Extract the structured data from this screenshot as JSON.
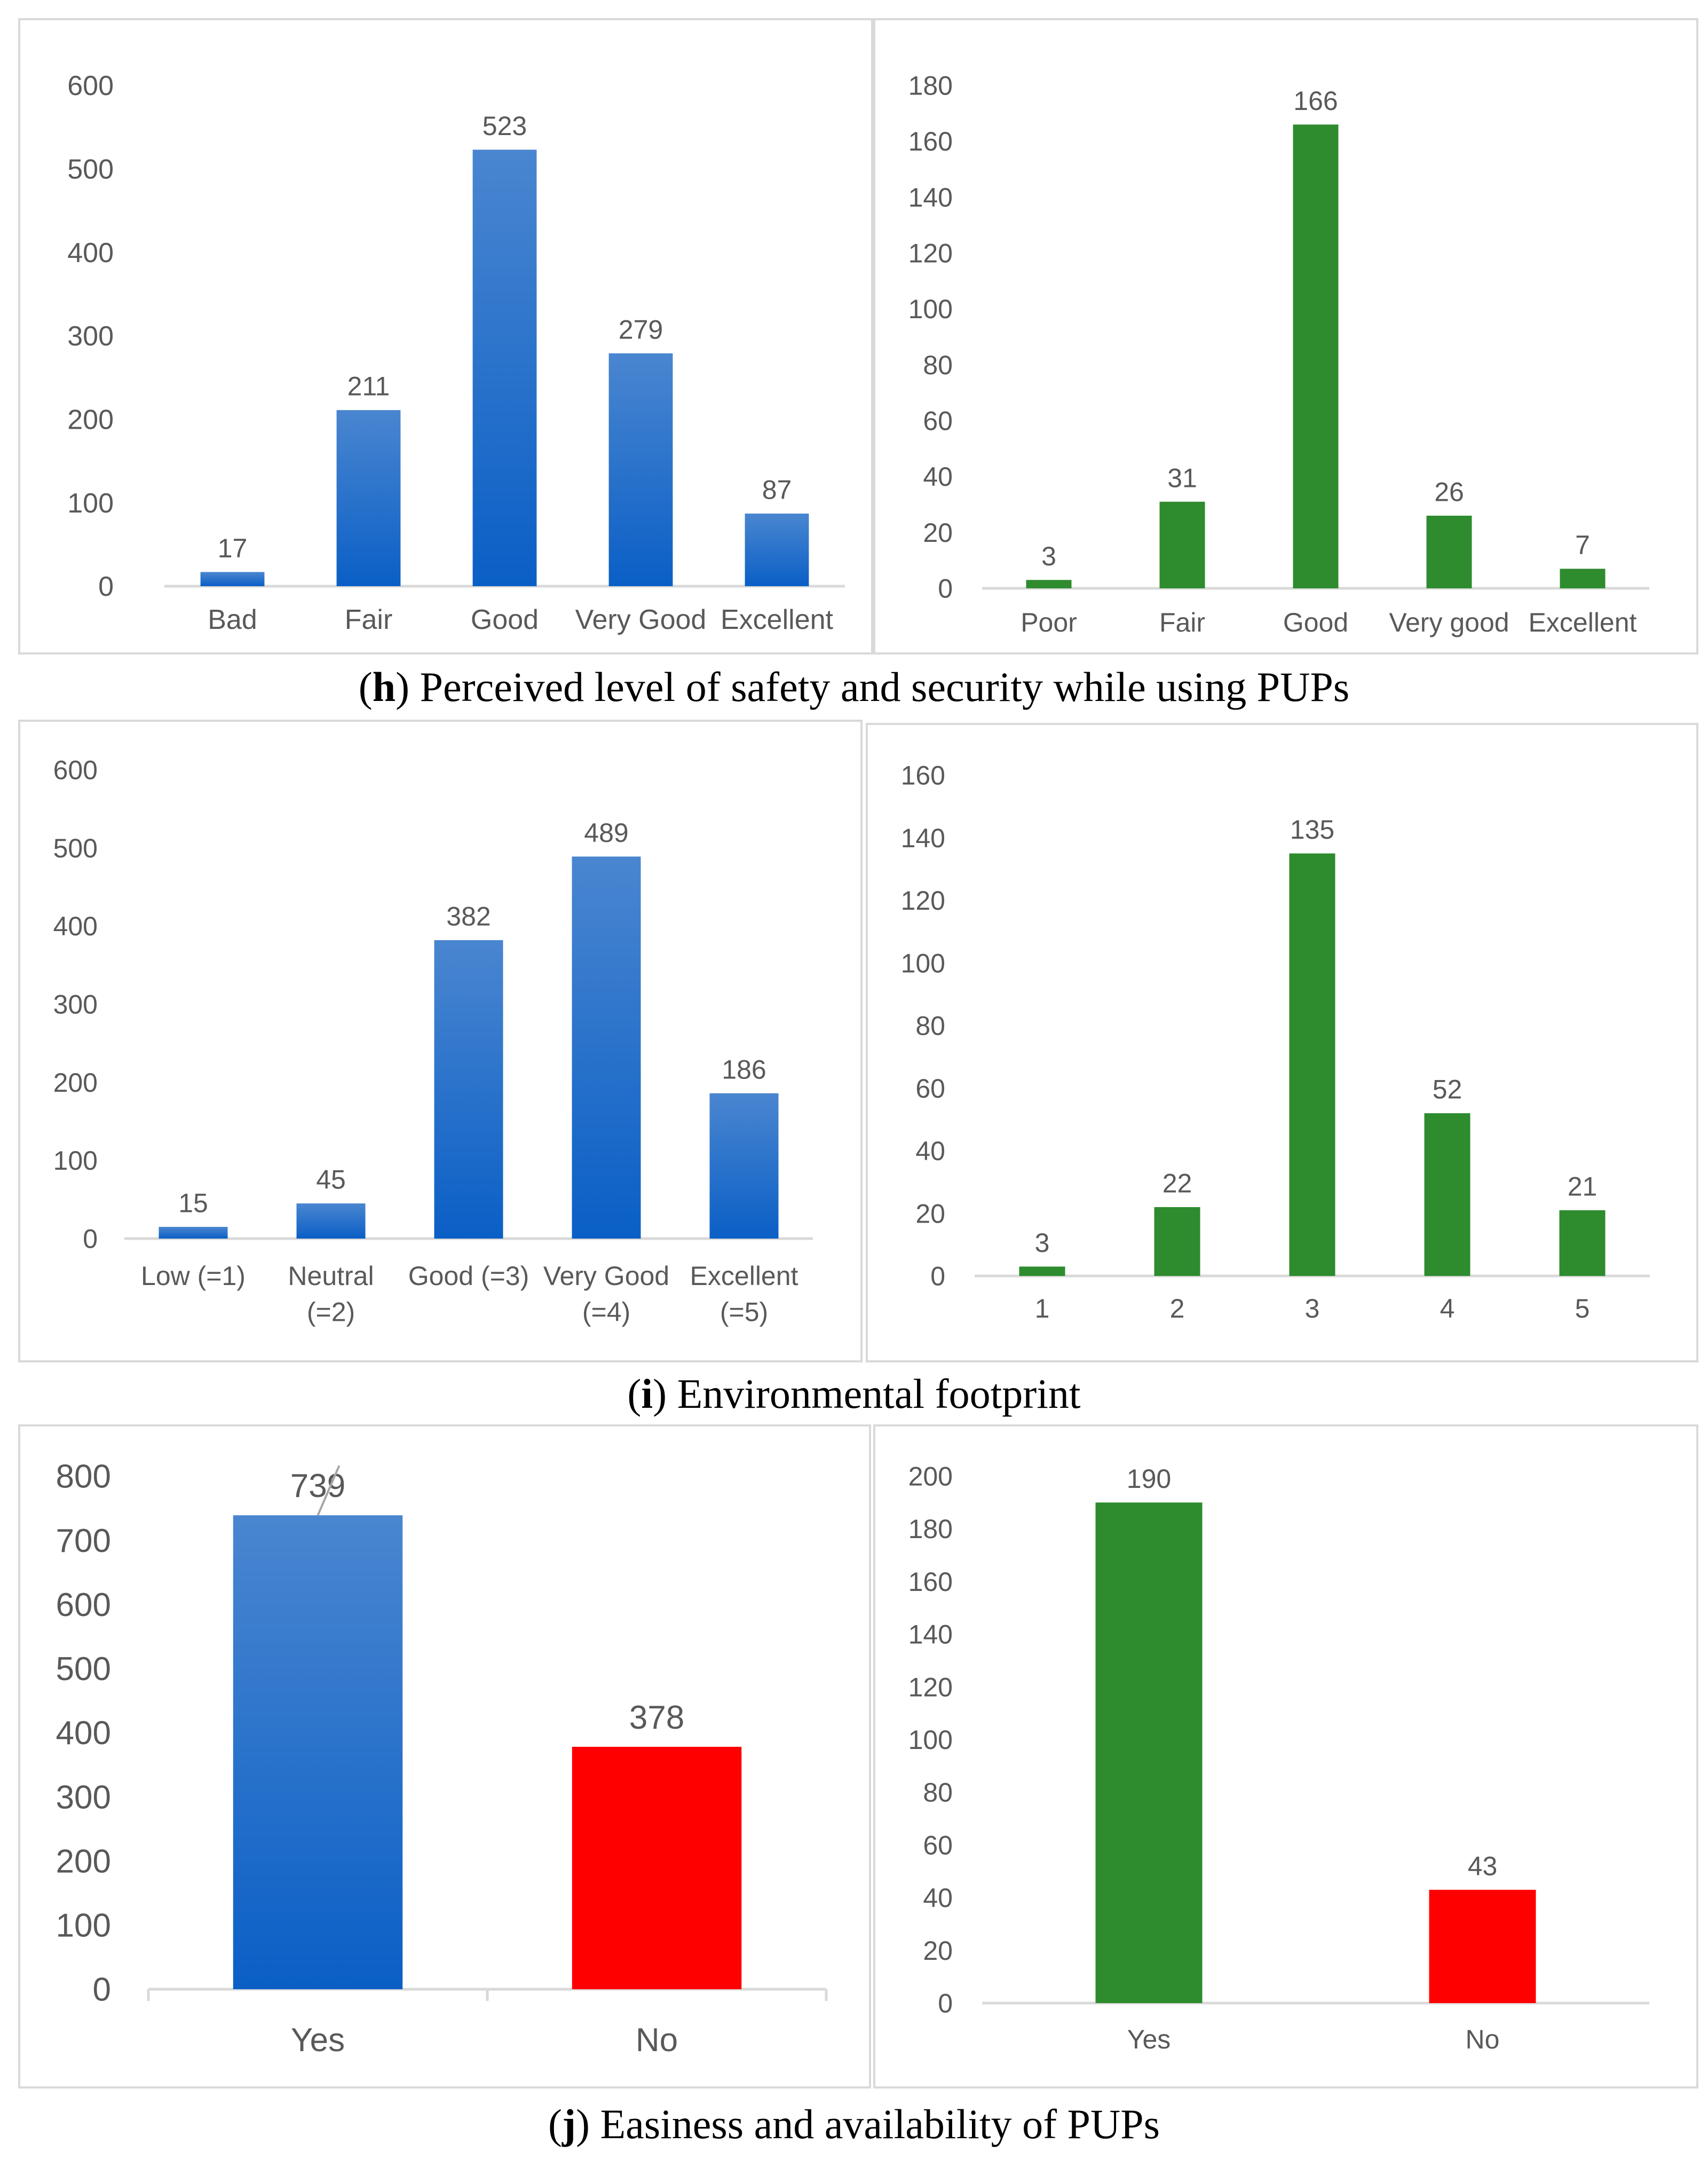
{
  "captions": [
    {
      "letter": "h",
      "text": " Perceived level of safety and security while using PUPs"
    },
    {
      "letter": "i",
      "text": " Environmental footprint"
    },
    {
      "letter": "j",
      "text": " Easiness and availability of PUPs"
    }
  ],
  "colors": {
    "blue_top": "#4a86d0",
    "blue_bottom": "#0a5fc6",
    "green": "#2e8b2e",
    "red": "#ff0000",
    "axis": "#d9d9d9",
    "text": "#595959",
    "panel_border": "#d9d9d9"
  },
  "chart_data": [
    {
      "id": "h-left",
      "type": "bar",
      "categories": [
        "Bad",
        "Fair",
        "Good",
        "Very Good",
        "Excellent"
      ],
      "values": [
        17,
        211,
        523,
        279,
        87
      ],
      "ylim": [
        0,
        600
      ],
      "yticks": [
        0,
        100,
        200,
        300,
        400,
        500,
        600
      ],
      "bar_colors": [
        "blue",
        "blue",
        "blue",
        "blue",
        "blue"
      ],
      "title": "",
      "xlabel": "",
      "ylabel": ""
    },
    {
      "id": "h-right",
      "type": "bar",
      "categories": [
        "Poor",
        "Fair",
        "Good",
        "Very good",
        "Excellent"
      ],
      "values": [
        3,
        31,
        166,
        26,
        7
      ],
      "ylim": [
        0,
        180
      ],
      "yticks": [
        0,
        20,
        40,
        60,
        80,
        100,
        120,
        140,
        160,
        180
      ],
      "bar_colors": [
        "green",
        "green",
        "green",
        "green",
        "green"
      ],
      "title": "",
      "xlabel": "",
      "ylabel": ""
    },
    {
      "id": "i-left",
      "type": "bar",
      "categories": [
        "Low (=1)",
        "Neutral (=2)",
        "Good (=3)",
        "Very Good (=4)",
        "Excellent (=5)"
      ],
      "values": [
        15,
        45,
        382,
        489,
        186
      ],
      "ylim": [
        0,
        600
      ],
      "yticks": [
        0,
        100,
        200,
        300,
        400,
        500,
        600
      ],
      "bar_colors": [
        "blue",
        "blue",
        "blue",
        "blue",
        "blue"
      ],
      "title": "",
      "xlabel": "",
      "ylabel": ""
    },
    {
      "id": "i-right",
      "type": "bar",
      "categories": [
        "1",
        "2",
        "3",
        "4",
        "5"
      ],
      "values": [
        3,
        22,
        135,
        52,
        21
      ],
      "ylim": [
        0,
        160
      ],
      "yticks": [
        0,
        20,
        40,
        60,
        80,
        100,
        120,
        140,
        160
      ],
      "bar_colors": [
        "green",
        "green",
        "green",
        "green",
        "green"
      ],
      "title": "",
      "xlabel": "",
      "ylabel": ""
    },
    {
      "id": "j-left",
      "type": "bar",
      "categories": [
        "Yes",
        "No"
      ],
      "values": [
        739,
        378
      ],
      "ylim": [
        0,
        800
      ],
      "yticks": [
        0,
        100,
        200,
        300,
        400,
        500,
        600,
        700,
        800
      ],
      "bar_colors": [
        "blue",
        "red"
      ],
      "title": "",
      "xlabel": "",
      "ylabel": ""
    },
    {
      "id": "j-right",
      "type": "bar",
      "categories": [
        "Yes",
        "No"
      ],
      "values": [
        190,
        43
      ],
      "ylim": [
        0,
        200
      ],
      "yticks": [
        0,
        20,
        40,
        60,
        80,
        100,
        120,
        140,
        160,
        180,
        200
      ],
      "bar_colors": [
        "green",
        "red"
      ],
      "title": "",
      "xlabel": "",
      "ylabel": ""
    }
  ]
}
